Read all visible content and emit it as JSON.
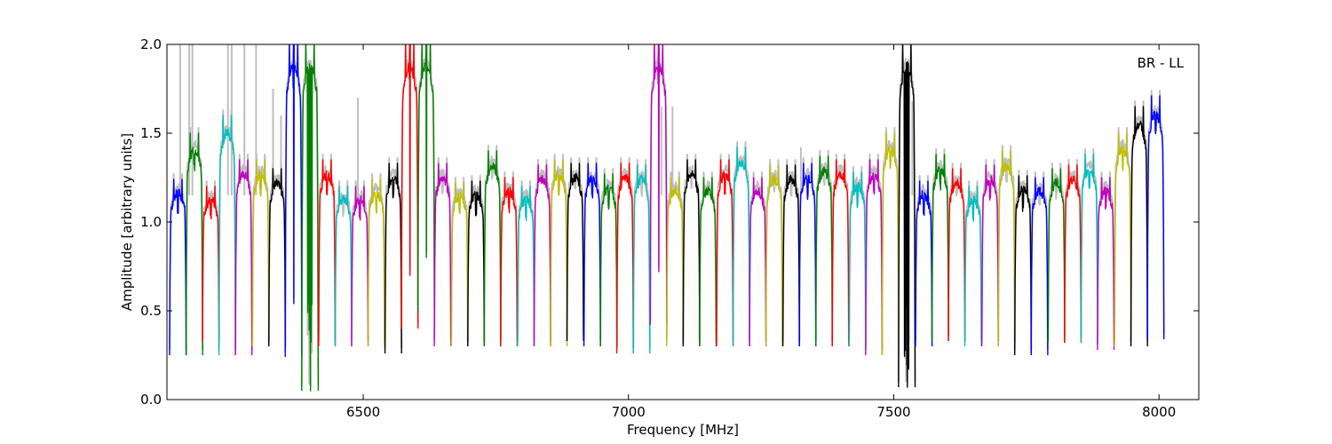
{
  "chart_data": {
    "type": "line",
    "title": "",
    "annotation": "BR - LL",
    "xlabel": "Frequency [MHz]",
    "ylabel": "Amplitude [arbitrary units]",
    "xlim": [
      6130,
      8075
    ],
    "ylim": [
      0.0,
      2.0
    ],
    "xticks": [
      6500,
      7000,
      7500,
      8000
    ],
    "xtick_labels": [
      "6500",
      "7000",
      "7500",
      "8000"
    ],
    "yticks": [
      0.0,
      0.5,
      1.0,
      1.5,
      2.0
    ],
    "ytick_labels": [
      "0.0",
      "0.5",
      "1.0",
      "1.5",
      "2.0"
    ],
    "grid": false,
    "legend": "none",
    "band_width_mhz": 31.25,
    "band_start_mhz": 6135,
    "background_trace": {
      "name": "",
      "color": "#bfbfbf",
      "description_values": "raw (unflagged) amplitude, approx same as colored bands with extra RFI spikes",
      "spikes": [
        {
          "x": 6155,
          "y": 2.0
        },
        {
          "x": 6172,
          "y": 2.0
        },
        {
          "x": 6178,
          "y": 2.0
        },
        {
          "x": 6245,
          "y": 2.0
        },
        {
          "x": 6252,
          "y": 2.0
        },
        {
          "x": 6276,
          "y": 2.0
        },
        {
          "x": 6298,
          "y": 2.0
        },
        {
          "x": 6330,
          "y": 1.75
        },
        {
          "x": 6345,
          "y": 1.6
        },
        {
          "x": 6490,
          "y": 1.7
        },
        {
          "x": 7062,
          "y": 1.65
        },
        {
          "x": 7083,
          "y": 1.65
        },
        {
          "x": 7325,
          "y": 1.42
        },
        {
          "x": 7535,
          "y": 1.68
        }
      ]
    },
    "series": [
      {
        "color": "#0000ff",
        "start": 6135,
        "peak": 1.24,
        "min": 0.25
      },
      {
        "color": "#008000",
        "start": 6166,
        "peak": 1.5,
        "min": 0.25
      },
      {
        "color": "#ff0000",
        "start": 6197,
        "peak": 1.2,
        "min": 0.33
      },
      {
        "color": "#00bfbf",
        "start": 6228,
        "peak": 1.6,
        "min": 0.25
      },
      {
        "color": "#bf00bf",
        "start": 6259,
        "peak": 1.35,
        "min": 0.25
      },
      {
        "color": "#bfbf00",
        "start": 6291,
        "peak": 1.35,
        "min": 0.3
      },
      {
        "color": "#000000",
        "start": 6322,
        "peak": 1.3,
        "min": 0.3
      },
      {
        "color": "#0000ff",
        "start": 6353,
        "peak": 2.0,
        "min": 0.24
      },
      {
        "color": "#008000",
        "start": 6384,
        "peak": 2.0,
        "min": 0.05
      },
      {
        "color": "#ff0000",
        "start": 6416,
        "peak": 1.35,
        "min": 0.3
      },
      {
        "color": "#00bfbf",
        "start": 6447,
        "peak": 1.2,
        "min": 0.3
      },
      {
        "color": "#bf00bf",
        "start": 6478,
        "peak": 1.2,
        "min": 0.3
      },
      {
        "color": "#bfbf00",
        "start": 6509,
        "peak": 1.24,
        "min": 0.3
      },
      {
        "color": "#000000",
        "start": 6541,
        "peak": 1.33,
        "min": 0.26
      },
      {
        "color": "#ff0000",
        "start": 6572,
        "peak": 2.0,
        "min": 0.4
      },
      {
        "color": "#008000",
        "start": 6603,
        "peak": 2.0,
        "min": 0.5
      },
      {
        "color": "#bf00bf",
        "start": 6634,
        "peak": 1.33,
        "min": 0.3
      },
      {
        "color": "#bfbf00",
        "start": 6666,
        "peak": 1.22,
        "min": 0.3
      },
      {
        "color": "#000000",
        "start": 6697,
        "peak": 1.23,
        "min": 0.3
      },
      {
        "color": "#008000",
        "start": 6728,
        "peak": 1.4,
        "min": 0.3
      },
      {
        "color": "#ff0000",
        "start": 6759,
        "peak": 1.25,
        "min": 0.3
      },
      {
        "color": "#00bfbf",
        "start": 6791,
        "peak": 1.2,
        "min": 0.3
      },
      {
        "color": "#bf00bf",
        "start": 6822,
        "peak": 1.32,
        "min": 0.3
      },
      {
        "color": "#bfbf00",
        "start": 6853,
        "peak": 1.35,
        "min": 0.3
      },
      {
        "color": "#000000",
        "start": 6884,
        "peak": 1.33,
        "min": 0.33
      },
      {
        "color": "#0000ff",
        "start": 6916,
        "peak": 1.33,
        "min": 0.3
      },
      {
        "color": "#008000",
        "start": 6947,
        "peak": 1.27,
        "min": 0.3
      },
      {
        "color": "#ff0000",
        "start": 6978,
        "peak": 1.33,
        "min": 0.26
      },
      {
        "color": "#00bfbf",
        "start": 7009,
        "peak": 1.32,
        "min": 0.26
      },
      {
        "color": "#bf00bf",
        "start": 7041,
        "peak": 2.0,
        "min": 0.42
      },
      {
        "color": "#bfbf00",
        "start": 7072,
        "peak": 1.25,
        "min": 0.3
      },
      {
        "color": "#000000",
        "start": 7103,
        "peak": 1.35,
        "min": 0.3
      },
      {
        "color": "#008000",
        "start": 7134,
        "peak": 1.25,
        "min": 0.3
      },
      {
        "color": "#ff0000",
        "start": 7166,
        "peak": 1.35,
        "min": 0.3
      },
      {
        "color": "#00bfbf",
        "start": 7197,
        "peak": 1.42,
        "min": 0.3
      },
      {
        "color": "#bf00bf",
        "start": 7228,
        "peak": 1.25,
        "min": 0.3
      },
      {
        "color": "#bfbf00",
        "start": 7259,
        "peak": 1.32,
        "min": 0.3
      },
      {
        "color": "#000000",
        "start": 7291,
        "peak": 1.32,
        "min": 0.3
      },
      {
        "color": "#0000ff",
        "start": 7322,
        "peak": 1.33,
        "min": 0.3
      },
      {
        "color": "#008000",
        "start": 7353,
        "peak": 1.37,
        "min": 0.3
      },
      {
        "color": "#ff0000",
        "start": 7384,
        "peak": 1.35,
        "min": 0.3
      },
      {
        "color": "#00bfbf",
        "start": 7416,
        "peak": 1.28,
        "min": 0.3
      },
      {
        "color": "#bf00bf",
        "start": 7447,
        "peak": 1.35,
        "min": 0.25
      },
      {
        "color": "#bfbf00",
        "start": 7478,
        "peak": 1.5,
        "min": 0.25
      },
      {
        "color": "#000000",
        "start": 7509,
        "peak": 2.0,
        "min": 0.07
      },
      {
        "color": "#0000ff",
        "start": 7541,
        "peak": 1.23,
        "min": 0.3
      },
      {
        "color": "#008000",
        "start": 7572,
        "peak": 1.38,
        "min": 0.33
      },
      {
        "color": "#ff0000",
        "start": 7603,
        "peak": 1.3,
        "min": 0.33
      },
      {
        "color": "#00bfbf",
        "start": 7634,
        "peak": 1.2,
        "min": 0.3
      },
      {
        "color": "#bf00bf",
        "start": 7666,
        "peak": 1.32,
        "min": 0.3
      },
      {
        "color": "#bfbf00",
        "start": 7697,
        "peak": 1.4,
        "min": 0.3
      },
      {
        "color": "#000000",
        "start": 7728,
        "peak": 1.26,
        "min": 0.25
      },
      {
        "color": "#0000ff",
        "start": 7759,
        "peak": 1.25,
        "min": 0.25
      },
      {
        "color": "#008000",
        "start": 7791,
        "peak": 1.3,
        "min": 0.32
      },
      {
        "color": "#ff0000",
        "start": 7822,
        "peak": 1.32,
        "min": 0.32
      },
      {
        "color": "#00bfbf",
        "start": 7853,
        "peak": 1.38,
        "min": 0.32
      },
      {
        "color": "#bf00bf",
        "start": 7884,
        "peak": 1.25,
        "min": 0.28
      },
      {
        "color": "#bfbf00",
        "start": 7916,
        "peak": 1.5,
        "min": 0.3
      },
      {
        "color": "#000000",
        "start": 7947,
        "peak": 1.65,
        "min": 0.3
      },
      {
        "color": "#0000ff",
        "start": 7978,
        "peak": 1.71,
        "min": 0.34
      }
    ]
  }
}
